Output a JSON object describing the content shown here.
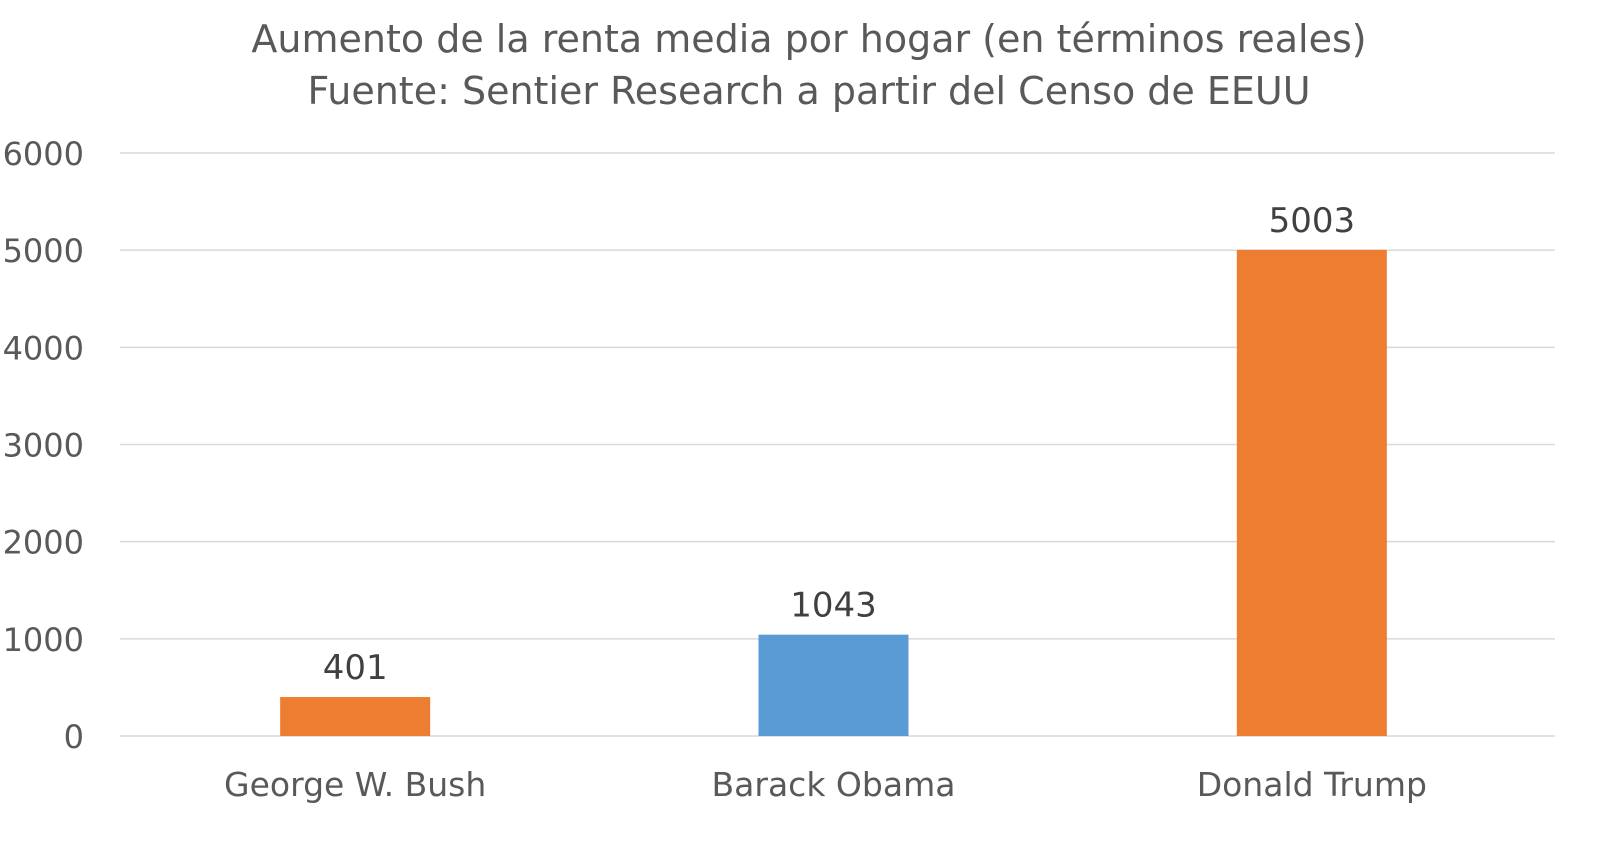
{
  "chart_data": {
    "type": "bar",
    "title": "Aumento de la renta media por hogar (en términos reales)",
    "subtitle": "Fuente: Sentier Research a partir del Censo de EEUU",
    "categories": [
      "George W. Bush",
      "Barack Obama",
      "Donald Trump"
    ],
    "values": [
      401,
      1043,
      5003
    ],
    "data_labels": [
      "401",
      "1043",
      "5003"
    ],
    "bar_colors": [
      "#ED7D31",
      "#5B9BD5",
      "#ED7D31"
    ],
    "xlabel": "",
    "ylabel": "",
    "ylim": [
      0,
      6000
    ],
    "yticks": [
      "0",
      "1000",
      "2000",
      "3000",
      "4000",
      "5000",
      "6000"
    ],
    "grid": true,
    "legend": "none"
  }
}
